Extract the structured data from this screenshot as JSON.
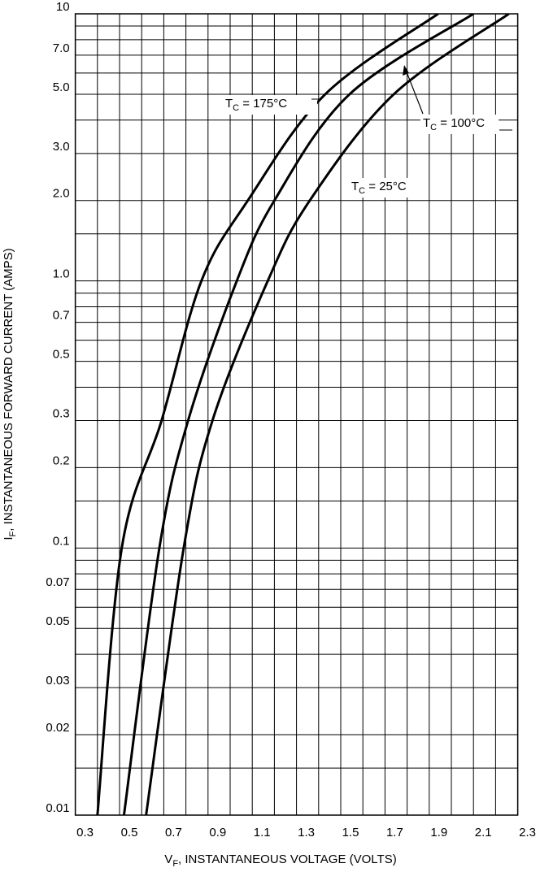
{
  "chart_data": {
    "type": "line",
    "x_label_parts": [
      "V",
      "F",
      ", INSTANTANEOUS VOLTAGE (VOLTS)"
    ],
    "y_label_parts": [
      "I",
      "F",
      ", INSTANTANEOUS FORWARD CURRENT (AMPS)"
    ],
    "y_log": true,
    "grid": true,
    "xlim": [
      0.3,
      2.3
    ],
    "xticks": [
      0.3,
      0.5,
      0.7,
      0.9,
      1.1,
      1.3,
      1.5,
      1.7,
      1.9,
      2.1,
      2.3
    ],
    "xminor": [
      0.4,
      0.6,
      0.8,
      1.0,
      1.2,
      1.4,
      1.6,
      1.8,
      2.0,
      2.2
    ],
    "ylim": [
      0.01,
      10
    ],
    "yticks": [
      0.01,
      0.02,
      0.03,
      0.05,
      0.07,
      0.1,
      0.2,
      0.3,
      0.5,
      0.7,
      {
        "value": 1,
        "label": "1.0"
      },
      {
        "value": 2,
        "label": "2.0"
      },
      {
        "value": 3,
        "label": "3.0"
      },
      {
        "value": 5,
        "label": "5.0"
      },
      {
        "value": 7,
        "label": "7.0"
      },
      10
    ],
    "yminor": [
      0.015,
      0.04,
      0.06,
      0.08,
      0.09,
      0.15,
      0.4,
      0.6,
      0.8,
      0.9,
      1.5,
      4,
      6,
      8,
      9
    ],
    "y": [
      0.01,
      0.1,
      0.3,
      1,
      2,
      5,
      10
    ],
    "series": [
      {
        "color": "#000000",
        "x": [
          0.4,
          0.51,
          0.69,
          0.87,
          1.08,
          1.43,
          1.94
        ]
      },
      {
        "color": "#000000",
        "x": [
          0.52,
          0.68,
          0.81,
          1.03,
          1.2,
          1.54,
          2.1
        ]
      },
      {
        "color": "#000000",
        "x": [
          0.62,
          0.79,
          0.92,
          1.17,
          1.36,
          1.74,
          2.26
        ]
      }
    ],
    "annotations": [
      {
        "parts": [
          "T",
          "C",
          " = 175°C"
        ]
      },
      {
        "parts": [
          "T",
          "C",
          " = 100°C"
        ]
      },
      {
        "parts": [
          "T",
          "C",
          " = 25°C"
        ]
      }
    ]
  }
}
